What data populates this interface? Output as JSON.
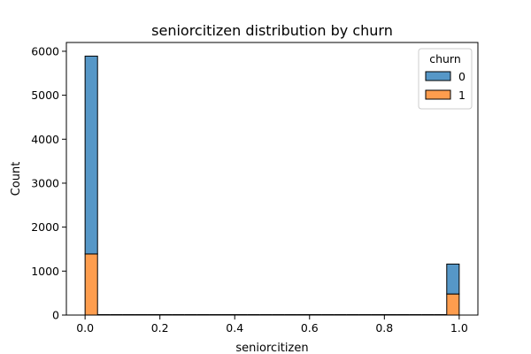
{
  "chart_data": {
    "type": "bar",
    "stacked": true,
    "title": "seniorcitizen distribution by churn",
    "xlabel": "seniorcitizen",
    "ylabel": "Count",
    "xlim": [
      -0.05,
      1.05
    ],
    "ylim": [
      0,
      6200
    ],
    "xticks": [
      0.0,
      0.2,
      0.4,
      0.6,
      0.8,
      1.0
    ],
    "xtick_labels": [
      "0.0",
      "0.2",
      "0.4",
      "0.6",
      "0.8",
      "1.0"
    ],
    "yticks": [
      0,
      1000,
      2000,
      3000,
      4000,
      5000,
      6000
    ],
    "ytick_labels": [
      "0",
      "1000",
      "2000",
      "3000",
      "4000",
      "5000",
      "6000"
    ],
    "bin_width": 0.0333,
    "bins": [
      {
        "x0": 0.0,
        "x1": 0.0333,
        "label": "0"
      },
      {
        "x0": 0.9667,
        "x1": 1.0,
        "label": "1"
      }
    ],
    "series": [
      {
        "name": "1",
        "color": "#fe9d4e",
        "values": [
          1390,
          480
        ]
      },
      {
        "name": "0",
        "color": "#5697c7",
        "values": [
          4500,
          680
        ]
      }
    ],
    "legend": {
      "title": "churn",
      "position": "top-right",
      "entries": [
        {
          "label": "0",
          "color": "#5697c7"
        },
        {
          "label": "1",
          "color": "#fe9d4e"
        }
      ]
    }
  }
}
